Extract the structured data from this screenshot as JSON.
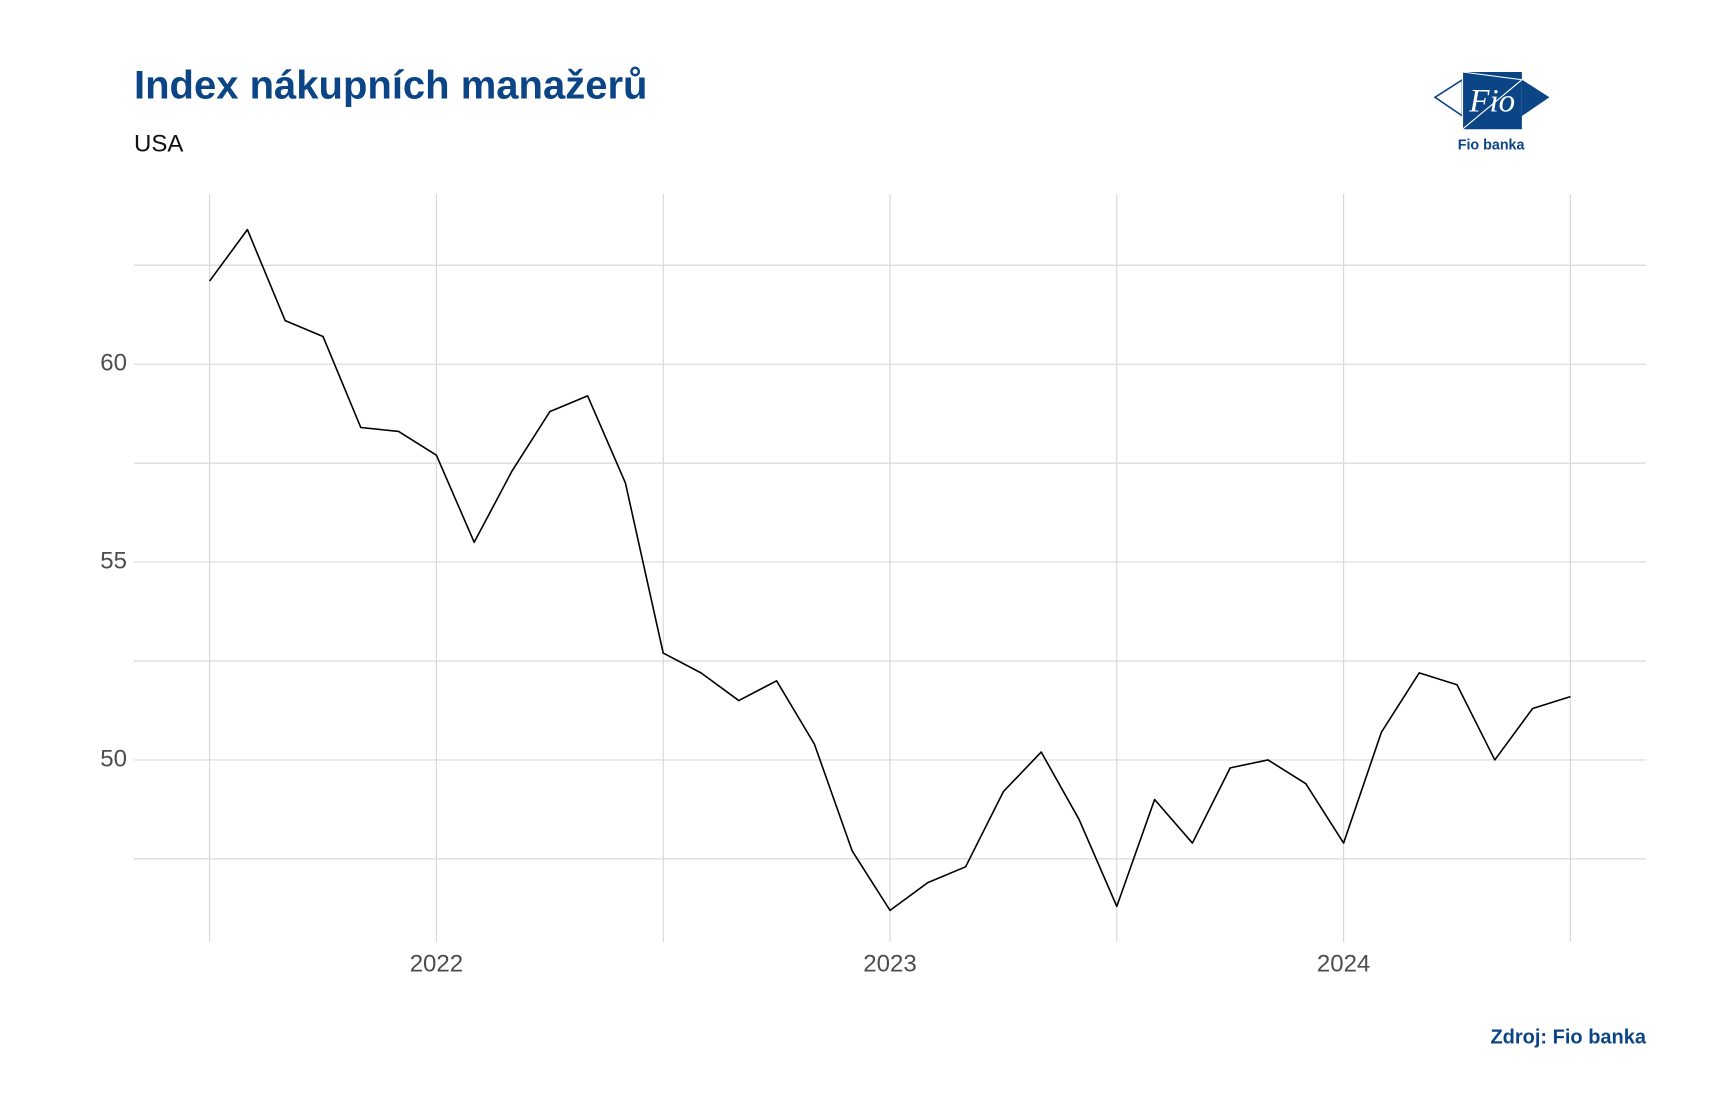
{
  "chart_data": {
    "type": "line",
    "title": "Index nákupních manažerů",
    "subtitle": "USA",
    "source": "Zdroj: Fio banka",
    "x": [
      "2021-07",
      "2021-08",
      "2021-09",
      "2021-10",
      "2021-11",
      "2021-12",
      "2022-01",
      "2022-02",
      "2022-03",
      "2022-04",
      "2022-05",
      "2022-06",
      "2022-07",
      "2022-08",
      "2022-09",
      "2022-10",
      "2022-11",
      "2022-12",
      "2023-01",
      "2023-02",
      "2023-03",
      "2023-04",
      "2023-05",
      "2023-06",
      "2023-07",
      "2023-08",
      "2023-09",
      "2023-10",
      "2023-11",
      "2023-12",
      "2024-01",
      "2024-02",
      "2024-03",
      "2024-04",
      "2024-05",
      "2024-06",
      "2024-07"
    ],
    "series": [
      {
        "color": "#000000",
        "values": [
          62.1,
          63.4,
          61.1,
          60.7,
          58.4,
          58.3,
          57.7,
          55.5,
          57.3,
          58.8,
          59.2,
          57.0,
          52.7,
          52.2,
          51.5,
          52.0,
          50.4,
          47.7,
          46.2,
          46.9,
          47.3,
          49.2,
          50.2,
          48.5,
          46.3,
          49.0,
          47.9,
          49.8,
          50.0,
          49.4,
          47.9,
          50.7,
          52.2,
          51.9,
          50.0,
          51.3,
          51.6
        ]
      }
    ],
    "xlim": [
      "2021-05",
      "2024-09"
    ],
    "xticks": [
      {
        "value": "2022-01",
        "label": "2022"
      },
      {
        "value": "2023-01",
        "label": "2023"
      },
      {
        "value": "2024-01",
        "label": "2024"
      }
    ],
    "xminorticks": [
      "2021-07",
      "2022-07",
      "2023-07",
      "2024-07"
    ],
    "ylim": [
      45.4,
      64.3
    ],
    "yticks": [
      50,
      55,
      60
    ],
    "yminorticks": [
      47.5,
      52.5,
      57.5,
      62.5
    ],
    "grid": true
  },
  "logo": {
    "mark": "Fio",
    "name": "Fio banka"
  }
}
